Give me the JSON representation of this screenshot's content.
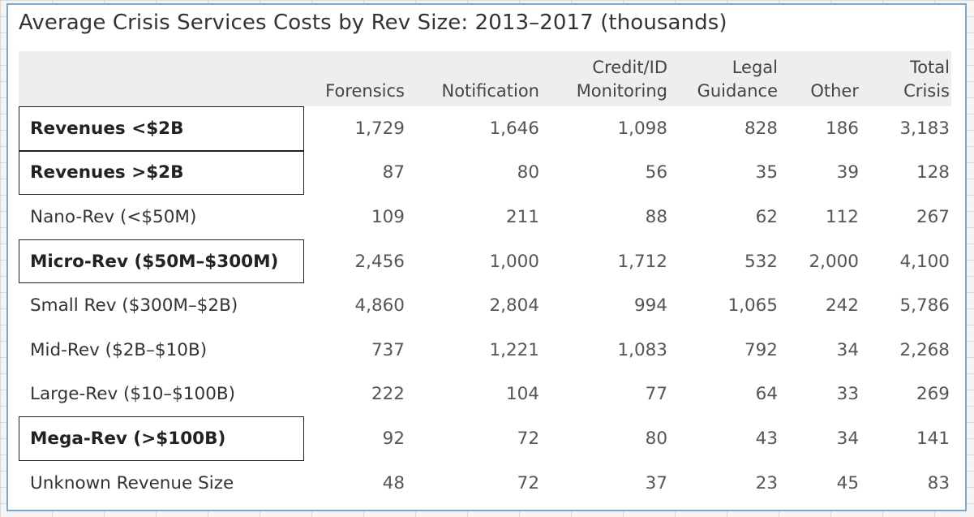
{
  "chart_data": {
    "type": "table",
    "title": "Average Crisis Services Costs by Rev Size: 2013–2017 (thousands)",
    "columns": [
      {
        "key": "forensics",
        "lines": [
          "Forensics"
        ]
      },
      {
        "key": "notification",
        "lines": [
          "Notification"
        ]
      },
      {
        "key": "credit_id",
        "lines": [
          "Credit/ID",
          "Monitoring"
        ]
      },
      {
        "key": "legal",
        "lines": [
          "Legal",
          "Guidance"
        ]
      },
      {
        "key": "other",
        "lines": [
          "Other"
        ]
      },
      {
        "key": "total",
        "lines": [
          "Total",
          "Crisis"
        ]
      }
    ],
    "rows": [
      {
        "label": "Revenues <$2B",
        "highlighted": true,
        "values": [
          "1,729",
          "1,646",
          "1,098",
          "828",
          "186",
          "3,183"
        ]
      },
      {
        "label": "Revenues >$2B",
        "highlighted": true,
        "values": [
          "87",
          "80",
          "56",
          "35",
          "39",
          "128"
        ]
      },
      {
        "label": "Nano-Rev (<$50M)",
        "highlighted": false,
        "values": [
          "109",
          "211",
          "88",
          "62",
          "112",
          "267"
        ]
      },
      {
        "label": "Micro-Rev ($50M–$300M)",
        "highlighted": true,
        "values": [
          "2,456",
          "1,000",
          "1,712",
          "532",
          "2,000",
          "4,100"
        ]
      },
      {
        "label": "Small Rev ($300M–$2B)",
        "highlighted": false,
        "values": [
          "4,860",
          "2,804",
          "994",
          "1,065",
          "242",
          "5,786"
        ]
      },
      {
        "label": "Mid-Rev ($2B–$10B)",
        "highlighted": false,
        "values": [
          "737",
          "1,221",
          "1,083",
          "792",
          "34",
          "2,268"
        ]
      },
      {
        "label": "Large-Rev ($10–$100B)",
        "highlighted": false,
        "values": [
          "222",
          "104",
          "77",
          "64",
          "33",
          "269"
        ]
      },
      {
        "label": "Mega-Rev (>$100B)",
        "highlighted": true,
        "values": [
          "92",
          "72",
          "80",
          "43",
          "34",
          "141"
        ]
      },
      {
        "label": "Unknown Revenue Size",
        "highlighted": false,
        "values": [
          "48",
          "72",
          "37",
          "23",
          "45",
          "83"
        ]
      }
    ]
  }
}
